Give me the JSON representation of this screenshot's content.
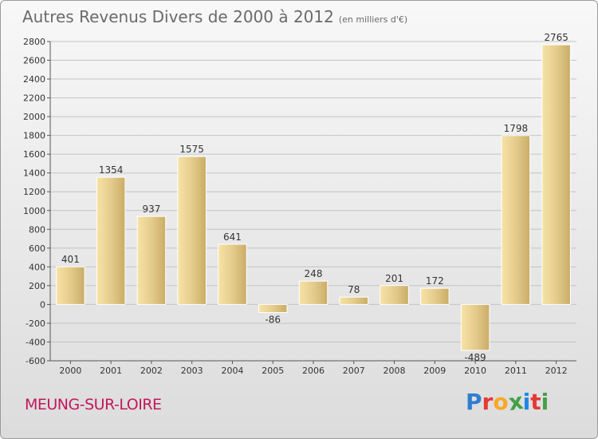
{
  "header": {
    "title": "Autres Revenus Divers de 2000 à 2012",
    "unit": "(en milliers d'€)"
  },
  "footer": {
    "town": "MEUNG-SUR-LOIRE",
    "logo_letters": [
      "P",
      "r",
      "o",
      "x",
      "i",
      "t",
      "i"
    ],
    "logo_colors": [
      "#2e7dd1",
      "#e53935",
      "#f9a825",
      "#43a047",
      "#1e88e5",
      "#e53935",
      "#43a047"
    ]
  },
  "chart_data": {
    "type": "bar",
    "categories": [
      "2000",
      "2001",
      "2002",
      "2003",
      "2004",
      "2005",
      "2006",
      "2007",
      "2008",
      "2009",
      "2010",
      "2011",
      "2012"
    ],
    "values": [
      401,
      1354,
      937,
      1575,
      641,
      -86,
      248,
      78,
      201,
      172,
      -489,
      1798,
      2765
    ],
    "ylim": [
      -600,
      2800
    ],
    "yticks": [
      -600,
      -400,
      -200,
      0,
      200,
      400,
      600,
      800,
      1000,
      1200,
      1400,
      1600,
      1800,
      2000,
      2200,
      2400,
      2600,
      2800
    ],
    "grid": true,
    "bar_color_light": "#f7e3a6",
    "bar_color_dark": "#c9ac66"
  }
}
